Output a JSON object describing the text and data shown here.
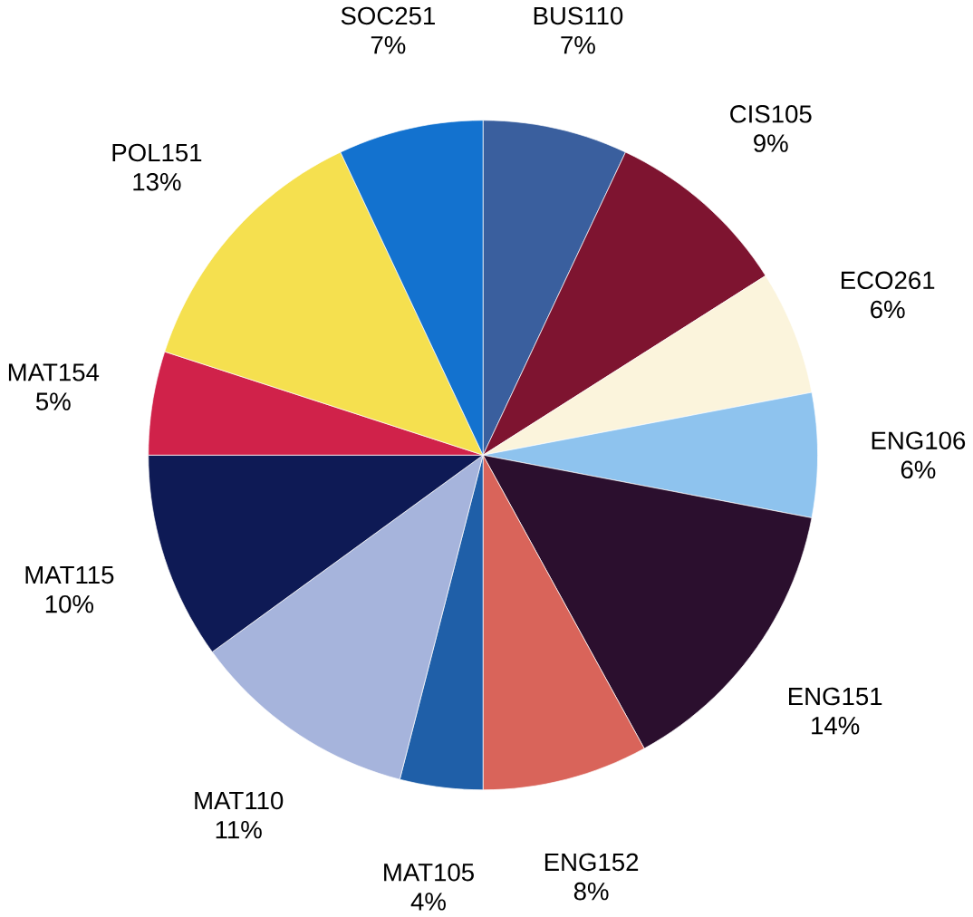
{
  "chart_data": {
    "type": "pie",
    "categories": [
      "BUS110",
      "CIS105",
      "ECO261",
      "ENG106",
      "ENG151",
      "ENG152",
      "MAT105",
      "MAT110",
      "MAT115",
      "MAT154",
      "POL151",
      "SOC251"
    ],
    "values": [
      7,
      9,
      6,
      6,
      14,
      8,
      4,
      11,
      10,
      5,
      13,
      7
    ],
    "value_labels": [
      "7%",
      "9%",
      "6%",
      "6%",
      "14%",
      "8%",
      "4%",
      "11%",
      "10%",
      "5%",
      "13%",
      "7%"
    ],
    "colors": [
      "#3a5f9e",
      "#7e1430",
      "#fbf4dc",
      "#8ec3ee",
      "#2b0f2e",
      "#d9645a",
      "#1f5fa8",
      "#a6b4dc",
      "#0e1a55",
      "#d0224a",
      "#f5e04f",
      "#1372cf"
    ]
  }
}
